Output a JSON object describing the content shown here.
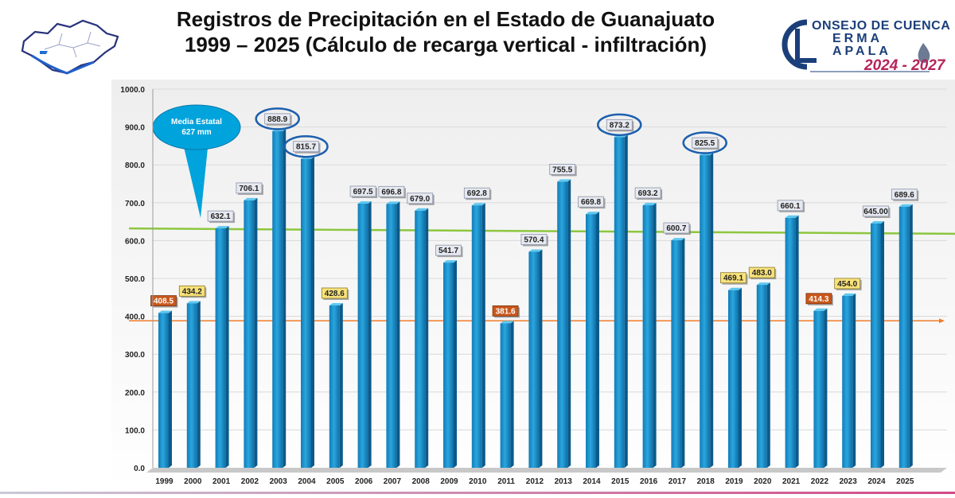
{
  "title": {
    "line1": "Registros de Precipitación en el Estado de Guanajuato",
    "line2": "1999 – 2025 (Cálculo de recarga vertical - infiltración)"
  },
  "logo": {
    "line1": "ONSEJO DE CUENCA",
    "line2": "ERMA",
    "line3": "APALA",
    "years": "2024 - 2027",
    "colors": {
      "text": "#1b3f7a",
      "years": "#b5245b"
    }
  },
  "callout": {
    "line1": "Media Estatal",
    "line2": "627 mm",
    "color": "#00a3dc"
  },
  "chart_data": {
    "type": "bar",
    "categories": [
      "1999",
      "2000",
      "2001",
      "2002",
      "2003",
      "2004",
      "2005",
      "2006",
      "2007",
      "2008",
      "2009",
      "2010",
      "2011",
      "2012",
      "2013",
      "2014",
      "2015",
      "2016",
      "2017",
      "2018",
      "2019",
      "2020",
      "2021",
      "2022",
      "2023",
      "2024",
      "2025"
    ],
    "values": [
      408.5,
      434.2,
      632.1,
      706.1,
      888.9,
      815.7,
      428.6,
      697.5,
      696.8,
      679.0,
      541.7,
      692.8,
      381.6,
      570.4,
      755.5,
      669.8,
      873.2,
      693.2,
      600.7,
      825.5,
      469.1,
      483.0,
      660.1,
      414.3,
      454.0,
      645.0,
      689.6
    ],
    "labels": [
      "408.5",
      "434.2",
      "632.1",
      "706.1",
      "888.9",
      "815.7",
      "428.6",
      "697.5",
      "696.8",
      "679.0",
      "541.7",
      "692.8",
      "381.6",
      "570.4",
      "755.5",
      "669.8",
      "873.2",
      "693.2",
      "600.7",
      "825.5",
      "469.1",
      "483.0",
      "660.1",
      "414.3",
      "454.0",
      "645.00",
      "689.6"
    ],
    "label_styles": [
      "orange",
      "yellow",
      "gray",
      "gray",
      "gray",
      "gray",
      "yellow",
      "gray",
      "gray",
      "gray",
      "gray",
      "gray",
      "orange",
      "gray",
      "gray",
      "gray",
      "gray",
      "gray",
      "gray",
      "gray",
      "yellow",
      "yellow",
      "gray",
      "orange",
      "yellow",
      "gray",
      "gray"
    ],
    "circled": [
      "2003",
      "2004",
      "2015",
      "2018"
    ],
    "ylim": [
      0,
      1000
    ],
    "yticks": [
      "0.0",
      "100.0",
      "200.0",
      "300.0",
      "400.0",
      "500.0",
      "600.0",
      "700.0",
      "800.0",
      "900.0",
      "1000.0"
    ],
    "grid": true,
    "reference_lines": [
      {
        "value_start": 632,
        "value_end": 618,
        "color": "#8cc63f"
      },
      {
        "value": 388,
        "color": "#f07c2a"
      }
    ],
    "colors": {
      "bar": "#1e90c8",
      "bar_highlight": "#5fc8f0",
      "circle": "#1c5fae",
      "label_gray": "#e6e9f0",
      "label_yellow": "#f8e27a",
      "label_orange": "#c9571b"
    }
  }
}
